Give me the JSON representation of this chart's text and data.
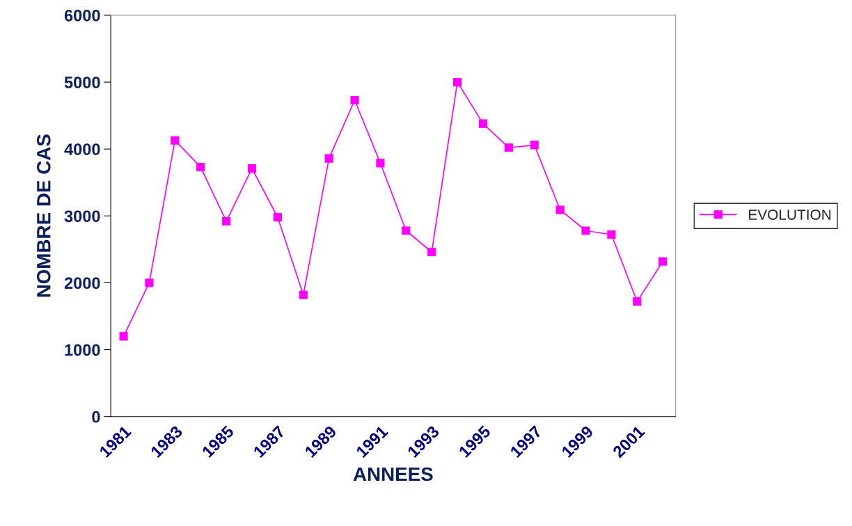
{
  "chart_data": {
    "type": "line",
    "xlabel": "ANNEES",
    "ylabel": "NOMBRE DE CAS",
    "categories": [
      "1981",
      null,
      "1983",
      null,
      "1985",
      null,
      "1987",
      null,
      "1989",
      null,
      "1991",
      null,
      "1993",
      null,
      "1995",
      null,
      "1997",
      null,
      "1999",
      null,
      "2001",
      null
    ],
    "series": [
      {
        "name": "EVOLUTION",
        "color": "#ff00ff",
        "values": [
          1200,
          2000,
          4130,
          3730,
          2920,
          3710,
          2980,
          1820,
          3860,
          4730,
          3790,
          2780,
          2460,
          5000,
          4380,
          4020,
          4060,
          3090,
          2780,
          2720,
          1720,
          2320
        ]
      }
    ],
    "ylim": [
      0,
      6000
    ],
    "yticks": [
      0,
      1000,
      2000,
      3000,
      4000,
      5000,
      6000
    ],
    "grid": false,
    "legend": "right",
    "marker": "square",
    "line_style": "solid"
  }
}
